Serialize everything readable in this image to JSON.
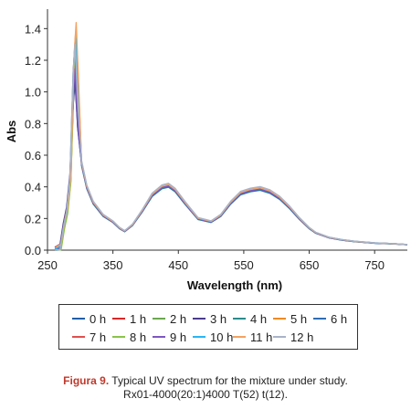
{
  "chart_data": {
    "type": "line",
    "xlabel": "Wavelength (nm)",
    "ylabel": "Abs",
    "xlim": [
      250,
      800
    ],
    "ylim": [
      0,
      1.5
    ],
    "x_ticks": [
      "250",
      "350",
      "450",
      "550",
      "650",
      "750"
    ],
    "y_ticks": [
      "0.0",
      "0.2",
      "0.4",
      "0.6",
      "0.8",
      "1.0",
      "1.2",
      "1.4"
    ],
    "legend_position": "bottom",
    "series": [
      {
        "name": "0 h",
        "color": "#1f5fa8",
        "peak": 1.1,
        "scale": 0.99
      },
      {
        "name": "1 h",
        "color": "#d62728",
        "peak": 1.2,
        "scale": 1.0
      },
      {
        "name": "2 h",
        "color": "#6aa84f",
        "peak": 1.25,
        "scale": 1.0
      },
      {
        "name": "3 h",
        "color": "#4b3b8f",
        "peak": 1.05,
        "scale": 1.01
      },
      {
        "name": "4 h",
        "color": "#2a8c8c",
        "peak": 1.22,
        "scale": 0.97
      },
      {
        "name": "5 h",
        "color": "#f08a24",
        "peak": 1.4,
        "scale": 1.0
      },
      {
        "name": "6 h",
        "color": "#2e6db4",
        "peak": 1.3,
        "scale": 0.98
      },
      {
        "name": "7 h",
        "color": "#e05050",
        "peak": 1.35,
        "scale": 1.01
      },
      {
        "name": "8 h",
        "color": "#8bc34a",
        "peak": 1.38,
        "scale": 1.0
      },
      {
        "name": "9 h",
        "color": "#7e57c2",
        "peak": 1.15,
        "scale": 0.99
      },
      {
        "name": "10 h",
        "color": "#29b6f6",
        "peak": 1.33,
        "scale": 1.02
      },
      {
        "name": "11 h",
        "color": "#f4a261",
        "peak": 1.42,
        "scale": 1.01
      },
      {
        "name": "12 h",
        "color": "#a9b4c8",
        "peak": 1.32,
        "scale": 1.03
      }
    ],
    "shape": {
      "x": [
        262,
        270,
        275,
        280,
        285,
        290,
        293,
        297,
        302,
        310,
        320,
        335,
        350,
        360,
        368,
        380,
        395,
        410,
        425,
        435,
        445,
        460,
        480,
        500,
        515,
        530,
        545,
        560,
        575,
        590,
        605,
        620,
        635,
        650,
        660,
        680,
        700,
        720,
        750,
        780,
        800
      ],
      "rel": [
        0.0,
        0.02,
        0.15,
        0.25,
        0.45,
        0.85,
        1.0,
        0.8,
        0.55,
        0.4,
        0.3,
        0.22,
        0.18,
        0.14,
        0.12,
        0.16,
        0.25,
        0.35,
        0.4,
        0.41,
        0.38,
        0.3,
        0.2,
        0.18,
        0.22,
        0.3,
        0.36,
        0.38,
        0.39,
        0.37,
        0.33,
        0.27,
        0.2,
        0.14,
        0.11,
        0.08,
        0.065,
        0.055,
        0.045,
        0.04,
        0.035
      ]
    }
  },
  "caption": {
    "label": "Figura 9.",
    "line1": "Typical UV spectrum for the mixture under study.",
    "line2": "Rx01-4000(20:1)4000 T(52) t(12)."
  }
}
